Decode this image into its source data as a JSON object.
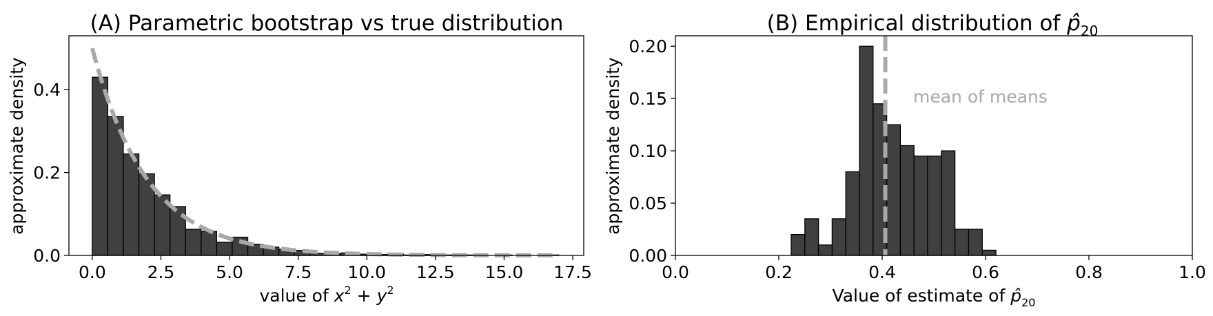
{
  "chart_data": [
    {
      "type": "bar",
      "title": "(A) Parametric bootstrap vs true distribution",
      "xlabel": "value of x² + y²",
      "ylabel": "approximate density",
      "xlim": [
        -0.85,
        17.9
      ],
      "ylim": [
        0,
        0.53
      ],
      "xticks": [
        "0.0",
        "2.5",
        "5.0",
        "7.5",
        "10.0",
        "12.5",
        "15.0",
        "17.5"
      ],
      "yticks": [
        "0.0",
        "0.2",
        "0.4"
      ],
      "bin_width": 0.566,
      "bins": [
        {
          "x": 0.0,
          "y": 0.43
        },
        {
          "x": 0.566,
          "y": 0.335
        },
        {
          "x": 1.133,
          "y": 0.245
        },
        {
          "x": 1.699,
          "y": 0.197
        },
        {
          "x": 2.266,
          "y": 0.146
        },
        {
          "x": 2.832,
          "y": 0.118
        },
        {
          "x": 3.399,
          "y": 0.063
        },
        {
          "x": 3.965,
          "y": 0.058
        },
        {
          "x": 4.532,
          "y": 0.032
        },
        {
          "x": 5.098,
          "y": 0.044
        },
        {
          "x": 5.665,
          "y": 0.027
        },
        {
          "x": 6.231,
          "y": 0.02
        },
        {
          "x": 6.798,
          "y": 0.015
        },
        {
          "x": 7.364,
          "y": 0.012
        },
        {
          "x": 7.931,
          "y": 0.005
        },
        {
          "x": 8.497,
          "y": 0.004
        },
        {
          "x": 9.064,
          "y": 0.006
        },
        {
          "x": 9.63,
          "y": 0.003
        },
        {
          "x": 10.197,
          "y": 0.002
        },
        {
          "x": 10.763,
          "y": 0.003
        },
        {
          "x": 11.33,
          "y": 0.001
        },
        {
          "x": 11.896,
          "y": 0.002
        },
        {
          "x": 12.463,
          "y": 0.001
        },
        {
          "x": 13.029,
          "y": 0.001
        },
        {
          "x": 13.596,
          "y": 0.001
        },
        {
          "x": 14.162,
          "y": 0.0
        },
        {
          "x": 14.729,
          "y": 0.001
        },
        {
          "x": 15.295,
          "y": 0.0
        },
        {
          "x": 15.862,
          "y": 0.0
        },
        {
          "x": 16.428,
          "y": 0.001
        }
      ],
      "curve": {
        "type": "dashed-line",
        "formula": "0.5*exp(-x/2)",
        "x_range": [
          0,
          17
        ],
        "color": "#a9a9a9"
      },
      "bar_color": "#404040",
      "grid": false
    },
    {
      "type": "bar",
      "title": "(B) Empirical distribution of p̂₂₀",
      "xlabel": "Value of estimate of p̂₂₀",
      "ylabel": "approximate density",
      "xlim": [
        0.0,
        1.0
      ],
      "ylim": [
        0,
        0.21
      ],
      "xticks": [
        "0.0",
        "0.2",
        "0.4",
        "0.6",
        "0.8",
        "1.0"
      ],
      "yticks": [
        "0.00",
        "0.05",
        "0.10",
        "0.15",
        "0.20"
      ],
      "bin_width": 0.0264,
      "bins": [
        {
          "x": 0.224,
          "y": 0.02
        },
        {
          "x": 0.2504,
          "y": 0.035
        },
        {
          "x": 0.2768,
          "y": 0.01
        },
        {
          "x": 0.3032,
          "y": 0.035
        },
        {
          "x": 0.3296,
          "y": 0.08
        },
        {
          "x": 0.356,
          "y": 0.2
        },
        {
          "x": 0.3824,
          "y": 0.145
        },
        {
          "x": 0.4088,
          "y": 0.125
        },
        {
          "x": 0.4352,
          "y": 0.105
        },
        {
          "x": 0.4616,
          "y": 0.095
        },
        {
          "x": 0.488,
          "y": 0.095
        },
        {
          "x": 0.5144,
          "y": 0.1
        },
        {
          "x": 0.5408,
          "y": 0.025
        },
        {
          "x": 0.5672,
          "y": 0.025
        },
        {
          "x": 0.5936,
          "y": 0.005
        }
      ],
      "vline": {
        "x": 0.406,
        "label": "mean of means",
        "color": "#a9a9a9"
      },
      "annotation": {
        "text": "mean of means",
        "x": 0.46,
        "y": 0.152
      },
      "bar_color": "#404040",
      "grid": false
    }
  ]
}
